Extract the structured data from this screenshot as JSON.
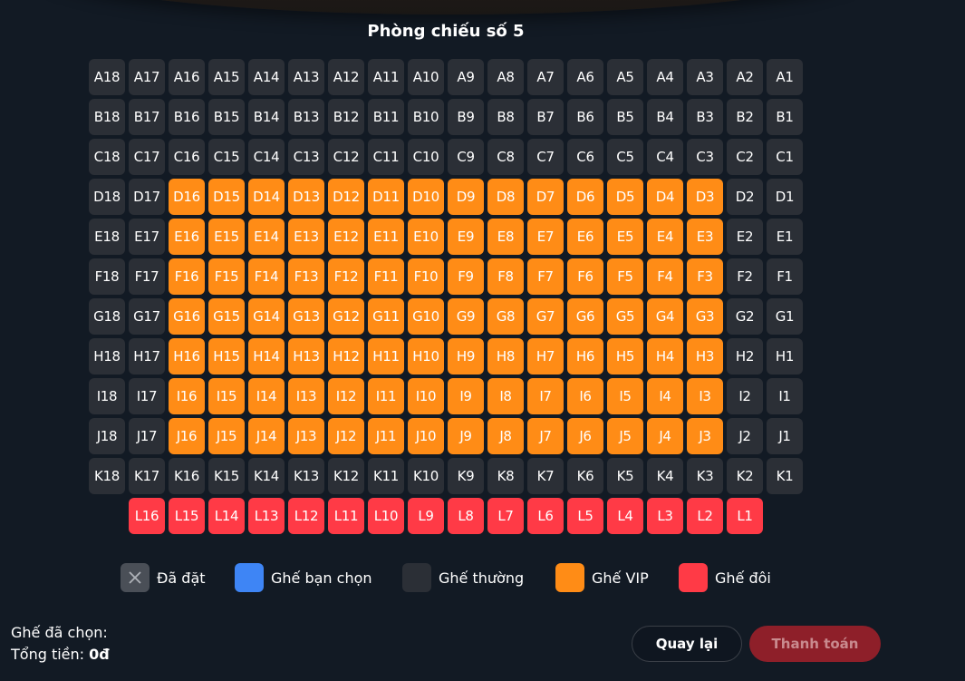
{
  "room_title": "Phòng chiếu số 5",
  "colors": {
    "background": "#121a24",
    "normal_seat": "#2b2f36",
    "vip_seat": "#ff8c16",
    "couple_seat": "#ff3a46",
    "selected_seat": "#3e85f5",
    "booked_seat": "#4a4f57",
    "pay_button": "#8e1f29"
  },
  "seat_map": {
    "rows": [
      {
        "letter": "A",
        "seats": [
          "A18",
          "A17",
          "A16",
          "A15",
          "A14",
          "A13",
          "A12",
          "A11",
          "A10",
          "A9",
          "A8",
          "A7",
          "A6",
          "A5",
          "A4",
          "A3",
          "A2",
          "A1"
        ]
      },
      {
        "letter": "B",
        "seats": [
          "B18",
          "B17",
          "B16",
          "B15",
          "B14",
          "B13",
          "B12",
          "B11",
          "B10",
          "B9",
          "B8",
          "B7",
          "B6",
          "B5",
          "B4",
          "B3",
          "B2",
          "B1"
        ]
      },
      {
        "letter": "C",
        "seats": [
          "C18",
          "C17",
          "C16",
          "C15",
          "C14",
          "C13",
          "C12",
          "C11",
          "C10",
          "C9",
          "C8",
          "C7",
          "C6",
          "C5",
          "C4",
          "C3",
          "C2",
          "C1"
        ]
      },
      {
        "letter": "D",
        "seats": [
          "D18",
          "D17",
          "D16",
          "D15",
          "D14",
          "D13",
          "D12",
          "D11",
          "D10",
          "D9",
          "D8",
          "D7",
          "D6",
          "D5",
          "D4",
          "D3",
          "D2",
          "D1"
        ]
      },
      {
        "letter": "E",
        "seats": [
          "E18",
          "E17",
          "E16",
          "E15",
          "E14",
          "E13",
          "E12",
          "E11",
          "E10",
          "E9",
          "E8",
          "E7",
          "E6",
          "E5",
          "E4",
          "E3",
          "E2",
          "E1"
        ]
      },
      {
        "letter": "F",
        "seats": [
          "F18",
          "F17",
          "F16",
          "F15",
          "F14",
          "F13",
          "F12",
          "F11",
          "F10",
          "F9",
          "F8",
          "F7",
          "F6",
          "F5",
          "F4",
          "F3",
          "F2",
          "F1"
        ]
      },
      {
        "letter": "G",
        "seats": [
          "G18",
          "G17",
          "G16",
          "G15",
          "G14",
          "G13",
          "G12",
          "G11",
          "G10",
          "G9",
          "G8",
          "G7",
          "G6",
          "G5",
          "G4",
          "G3",
          "G2",
          "G1"
        ]
      },
      {
        "letter": "H",
        "seats": [
          "H18",
          "H17",
          "H16",
          "H15",
          "H14",
          "H13",
          "H12",
          "H11",
          "H10",
          "H9",
          "H8",
          "H7",
          "H6",
          "H5",
          "H4",
          "H3",
          "H2",
          "H1"
        ]
      },
      {
        "letter": "I",
        "seats": [
          "I18",
          "I17",
          "I16",
          "I15",
          "I14",
          "I13",
          "I12",
          "I11",
          "I10",
          "I9",
          "I8",
          "I7",
          "I6",
          "I5",
          "I4",
          "I3",
          "I2",
          "I1"
        ]
      },
      {
        "letter": "J",
        "seats": [
          "J18",
          "J17",
          "J16",
          "J15",
          "J14",
          "J13",
          "J12",
          "J11",
          "J10",
          "J9",
          "J8",
          "J7",
          "J6",
          "J5",
          "J4",
          "J3",
          "J2",
          "J1"
        ]
      },
      {
        "letter": "K",
        "seats": [
          "K18",
          "K17",
          "K16",
          "K15",
          "K14",
          "K13",
          "K12",
          "K11",
          "K10",
          "K9",
          "K8",
          "K7",
          "K6",
          "K5",
          "K4",
          "K3",
          "K2",
          "K1"
        ]
      },
      {
        "letter": "L",
        "seats": [
          "L16",
          "L15",
          "L14",
          "L13",
          "L12",
          "L11",
          "L10",
          "L9",
          "L8",
          "L7",
          "L6",
          "L5",
          "L4",
          "L3",
          "L2",
          "L1"
        ]
      }
    ],
    "vip_rows": [
      "D",
      "E",
      "F",
      "G",
      "H",
      "I",
      "J"
    ],
    "vip_seat_numbers": [
      3,
      4,
      5,
      6,
      7,
      8,
      9,
      10,
      11,
      12,
      13,
      14,
      15,
      16
    ],
    "couple_rows": [
      "L"
    ]
  },
  "legend": [
    {
      "key": "booked",
      "label": "Đã đặt",
      "icon": "x-icon"
    },
    {
      "key": "selected",
      "label": "Ghế bạn chọn"
    },
    {
      "key": "normal",
      "label": "Ghế thường"
    },
    {
      "key": "vip",
      "label": "Ghế VIP"
    },
    {
      "key": "couple",
      "label": "Ghế đôi"
    }
  ],
  "summary": {
    "selected_label": "Ghế đã chọn:",
    "selected_value": "",
    "total_label": "Tổng tiền:",
    "total_value": "0đ"
  },
  "actions": {
    "back_label": "Quay lại",
    "pay_label": "Thanh toán"
  }
}
